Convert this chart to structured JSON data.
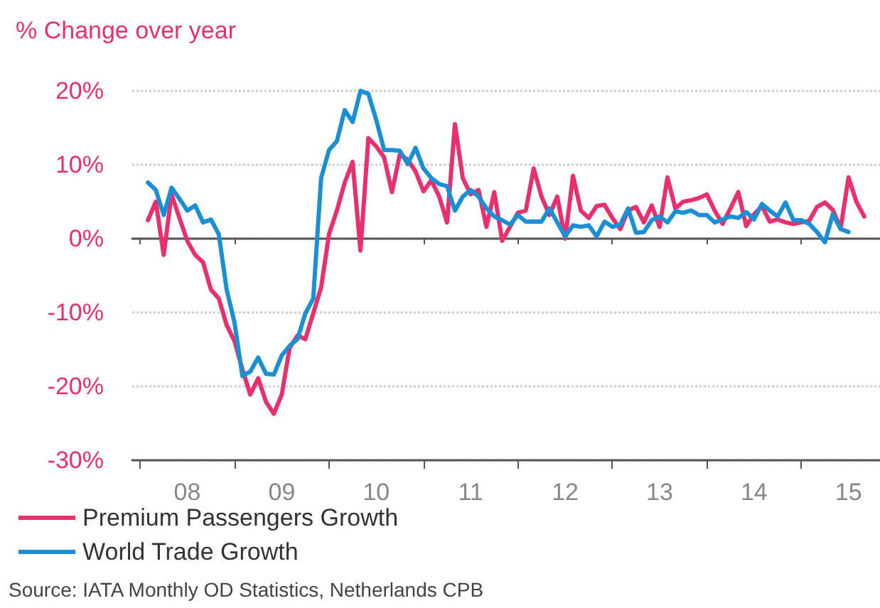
{
  "chart_data": {
    "type": "line",
    "ylabel": "% Change over year",
    "annotations": [
      "Source: IATA Monthly OD Statistics, Netherlands CPB"
    ],
    "x": [
      "2008-02",
      "2008-03",
      "2008-04",
      "2008-05",
      "2008-06",
      "2008-07",
      "2008-08",
      "2008-09",
      "2008-10",
      "2008-11",
      "2008-12",
      "2009-01",
      "2009-02",
      "2009-03",
      "2009-04",
      "2009-05",
      "2009-06",
      "2009-07",
      "2009-08",
      "2009-09",
      "2009-10",
      "2009-11",
      "2009-12",
      "2010-01",
      "2010-02",
      "2010-03",
      "2010-04",
      "2010-05",
      "2010-06",
      "2010-07",
      "2010-08",
      "2010-09",
      "2010-10",
      "2010-11",
      "2010-12",
      "2011-01",
      "2011-02",
      "2011-03",
      "2011-04",
      "2011-05",
      "2011-06",
      "2011-07",
      "2011-08",
      "2011-09",
      "2011-10",
      "2011-11",
      "2011-12",
      "2012-01",
      "2012-02",
      "2012-03",
      "2012-04",
      "2012-05",
      "2012-06",
      "2012-07",
      "2012-08",
      "2012-09",
      "2012-10",
      "2012-11",
      "2012-12",
      "2013-01",
      "2013-02",
      "2013-03",
      "2013-04",
      "2013-05",
      "2013-06",
      "2013-07",
      "2013-08",
      "2013-09",
      "2013-10",
      "2013-11",
      "2013-12",
      "2014-01",
      "2014-02",
      "2014-03",
      "2014-04",
      "2014-05",
      "2014-06",
      "2014-07",
      "2014-08",
      "2014-09",
      "2014-10",
      "2014-11",
      "2014-12",
      "2015-01",
      "2015-02",
      "2015-03",
      "2015-04",
      "2015-05",
      "2015-06",
      "2015-07",
      "2015-08",
      "2015-09"
    ],
    "series": [
      {
        "name": "Premium Passengers Growth",
        "color": "#e8306f",
        "values": [
          2.5,
          5.0,
          -2.2,
          6.0,
          2.8,
          -0.3,
          -2.2,
          -3.2,
          -6.9,
          -8.1,
          -11.7,
          -13.9,
          -17.7,
          -21.1,
          -18.9,
          -22.1,
          -23.7,
          -21.1,
          -14.8,
          -13.1,
          -13.6,
          -10.1,
          -6.6,
          0.6,
          3.8,
          7.6,
          10.4,
          -1.6,
          13.6,
          12.5,
          11.0,
          6.3,
          11.4,
          10.7,
          9.1,
          6.4,
          7.9,
          5.7,
          2.2,
          15.5,
          8.2,
          6.0,
          6.6,
          1.6,
          6.3,
          -0.3,
          1.6,
          3.5,
          3.8,
          9.5,
          5.7,
          3.2,
          5.7,
          0,
          8.5,
          3.8,
          2.8,
          4.4,
          4.6,
          2.8,
          1.3,
          3.8,
          4.3,
          2.2,
          4.5,
          1.6,
          8.3,
          4.1,
          5.0,
          5.2,
          5.5,
          6.0,
          3.8,
          2.0,
          4.1,
          6.3,
          1.7,
          3.3,
          4.4,
          2.3,
          2.6,
          2.2,
          2.0,
          2.2,
          2.4,
          4.3,
          4.9,
          3.9,
          1.4,
          8.3,
          5.0,
          3.0
        ]
      },
      {
        "name": "World Trade Growth",
        "color": "#1a8fd6",
        "values": [
          7.6,
          6.6,
          3.2,
          6.9,
          5.4,
          3.8,
          4.5,
          2.2,
          2.6,
          0.6,
          -6.9,
          -11.4,
          -18.6,
          -18.0,
          -16.1,
          -18.3,
          -18.4,
          -15.8,
          -14.5,
          -13.6,
          -10.1,
          -8.1,
          8.2,
          12.0,
          13.2,
          17.4,
          15.8,
          20,
          19.6,
          16.1,
          12.0,
          12.0,
          11.9,
          10.1,
          12.3,
          9.5,
          8.2,
          7.4,
          7.1,
          3.8,
          5.7,
          6.6,
          5.7,
          4.1,
          3.0,
          2.5,
          1.9,
          3.2,
          2.3,
          2.3,
          2.3,
          4.1,
          2.2,
          0.3,
          1.8,
          1.6,
          1.8,
          0.3,
          2.3,
          1.6,
          1.9,
          4.1,
          0.8,
          0.9,
          2.5,
          3.0,
          2.2,
          3.7,
          3.5,
          3.8,
          3.2,
          3.2,
          2.2,
          2.6,
          3.0,
          2.8,
          3.6,
          2.6,
          4.7,
          3.8,
          3.0,
          4.9,
          2.5,
          2.5,
          2.0,
          0.9,
          -0.5,
          3.3,
          1.3,
          0.9,
          null,
          null
        ]
      }
    ],
    "xlim": [
      "2007-12",
      "2015-11"
    ],
    "xticks": [
      {
        "value": "2008-01",
        "label": null
      },
      {
        "value": "2008-07",
        "label": "08"
      },
      {
        "value": "2009-01",
        "label": null
      },
      {
        "value": "2009-07",
        "label": "09"
      },
      {
        "value": "2010-01",
        "label": null
      },
      {
        "value": "2010-07",
        "label": "10"
      },
      {
        "value": "2011-01",
        "label": null
      },
      {
        "value": "2011-07",
        "label": "11"
      },
      {
        "value": "2012-01",
        "label": null
      },
      {
        "value": "2012-07",
        "label": "12"
      },
      {
        "value": "2013-01",
        "label": null
      },
      {
        "value": "2013-07",
        "label": "13"
      },
      {
        "value": "2014-01",
        "label": null
      },
      {
        "value": "2014-07",
        "label": "14"
      },
      {
        "value": "2015-01",
        "label": null
      },
      {
        "value": "2015-07",
        "label": "15"
      }
    ],
    "ylim": [
      -30,
      20
    ],
    "yticks": [
      {
        "value": -30,
        "label": "-30%"
      },
      {
        "value": -20,
        "label": "-20%"
      },
      {
        "value": -10,
        "label": "-10%"
      },
      {
        "value": 0,
        "label": "0%"
      },
      {
        "value": 10,
        "label": "10%"
      },
      {
        "value": 20,
        "label": "20%"
      }
    ],
    "grid": "y",
    "legend": "bottom left",
    "marker": "none",
    "line_style": "solid"
  }
}
